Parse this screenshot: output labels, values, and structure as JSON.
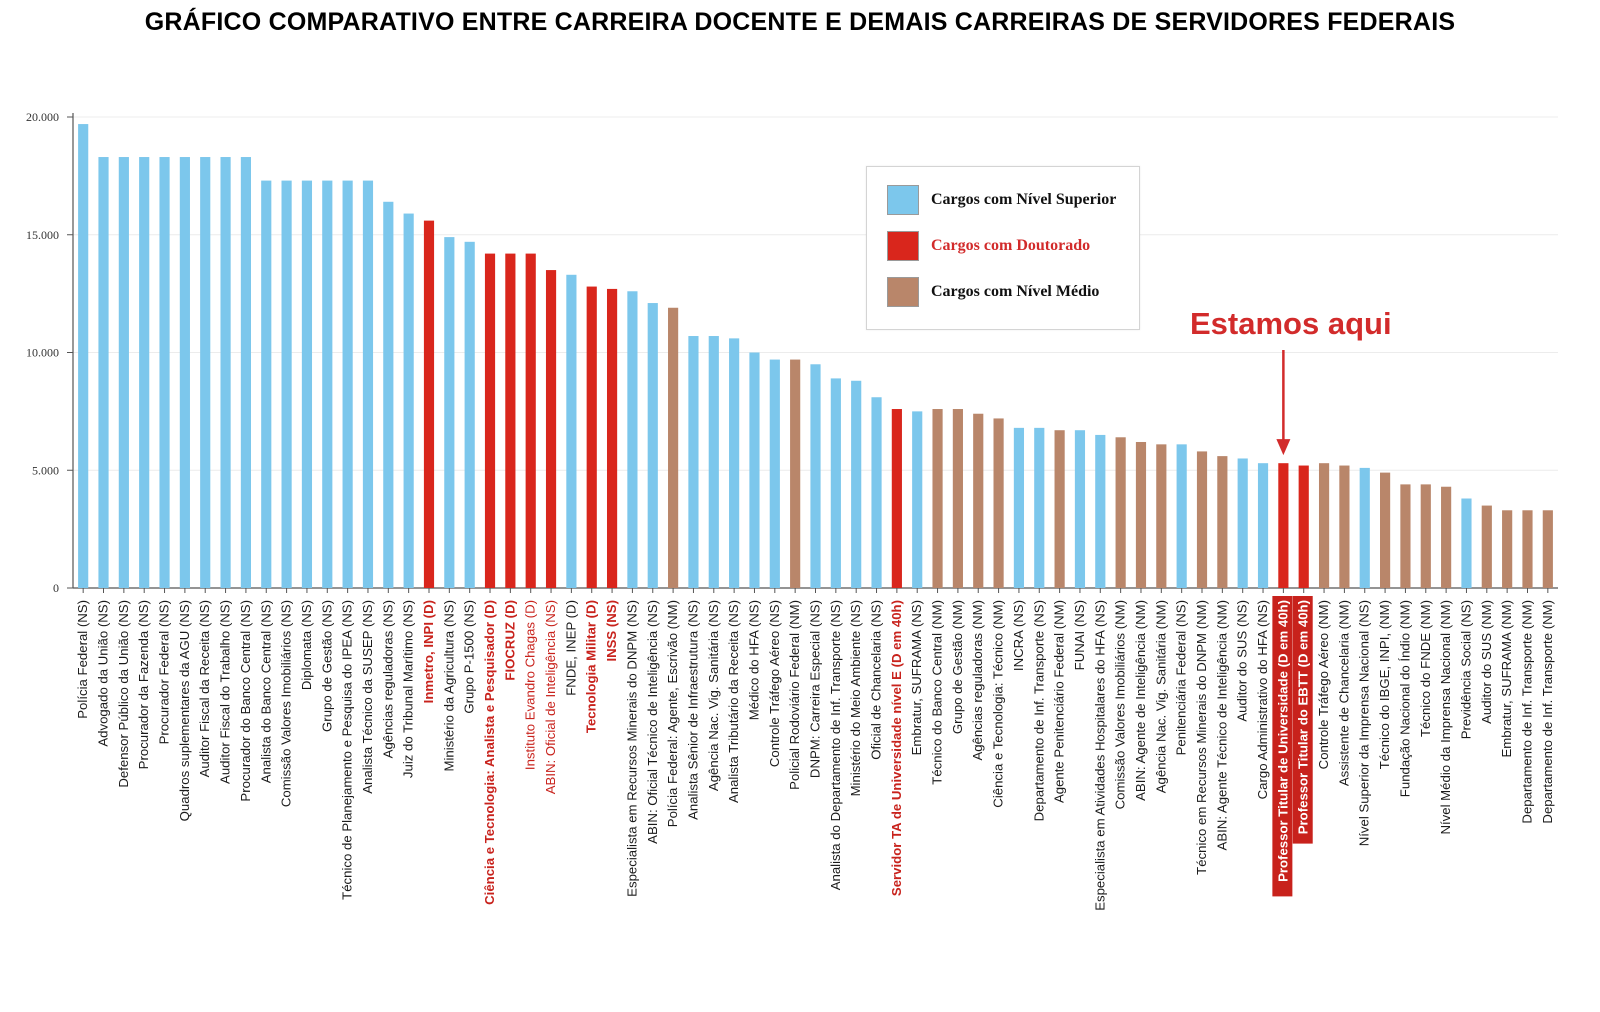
{
  "title": "GRÁFICO COMPARATIVO ENTRE CARREIRA DOCENTE E DEMAIS CARREIRAS DE SERVIDORES FEDERAIS",
  "annotation": "Estamos aqui",
  "colors": {
    "superior": "#7cc7ec",
    "doutorado": "#d9261c",
    "medio": "#b9866a",
    "red_text": "#c8221c",
    "highlight_bg": "#c8221c"
  },
  "legend": [
    {
      "label": "Cargos com Nível Superior",
      "key": "superior",
      "text_color": "#111111"
    },
    {
      "label": "Cargos com Doutorado",
      "key": "doutorado",
      "text_color": "#d22b2b"
    },
    {
      "label": "Cargos com Nível Médio",
      "key": "medio",
      "text_color": "#111111"
    }
  ],
  "chart_data": {
    "type": "bar",
    "title": "GRÁFICO COMPARATIVO ENTRE CARREIRA DOCENTE E DEMAIS CARREIRAS DE SERVIDORES FEDERAIS",
    "xlabel": "",
    "ylabel": "",
    "ylim": [
      0,
      20000
    ],
    "yticks": [
      0,
      5000,
      10000,
      15000,
      20000
    ],
    "ytick_labels": [
      "0",
      "5.000",
      "10.000",
      "15.000",
      "20.000"
    ],
    "grid": true,
    "legend_position": "top-center",
    "annotated_category": "Professor Titular de Universidade (D em 40h)",
    "categories": [
      "Polícia Federal (NS)",
      "Advogado da União (NS)",
      "Defensor Público da União (NS)",
      "Procurador da Fazenda (NS)",
      "Procurador Federal (NS)",
      "Quadros suplementares da AGU (NS)",
      "Auditor Fiscal da Receita (NS)",
      "Auditor Fiscal do Trabalho (NS)",
      "Procurador do Banco Central (NS)",
      "Analista do Banco Central (NS)",
      "Comissão Valores Imobiliários (NS)",
      "Diplomata (NS)",
      "Grupo de Gestão (NS)",
      "Técnico de Planejamento e Pesquisa do IPEA (NS)",
      "Analista Técnico da SUSEP (NS)",
      "Agências reguladoras (NS)",
      "Juiz do Tribunal Marítimo (NS)",
      "Inmetro, INPI (D)",
      "Ministério da Agricultura (NS)",
      "Grupo P-1500 (NS)",
      "Ciência e Tecnologia: Analista e Pesquisador (D)",
      "FIOCRUZ (D)",
      "Instituto Evandro Chagas (D)",
      "ABIN: Oficial de Inteligência (NS)",
      "FNDE, INEP (D)",
      "Tecnologia Militar (D)",
      "INSS (NS)",
      "Especialista em Recursos Minerais do DNPM (NS)",
      "ABIN: Oficial Técnico de Inteligência (NS)",
      "Polícia Federal: Agente, Escrivão (NM)",
      "Analista Sênior de Infraestrutura (NS)",
      "Agência Nac. Vig. Sanitária (NS)",
      "Analista Tributário da Receita (NS)",
      "Médico do HFA (NS)",
      "Controle Tráfego Aéreo (NS)",
      "Policial Rodoviário Federal (NM)",
      "DNPM: Carreira Especial (NS)",
      "Analista do Departamento de Inf. Transporte (NS)",
      "Ministério do Meio Ambiente (NS)",
      "Oficial de Chancelaria (NS)",
      "Servidor TA de Universidade nível E (D em 40h)",
      "Embratur, SUFRAMA (NS)",
      "Técnico do Banco Central (NM)",
      "Grupo de Gestão (NM)",
      "Agências reguladoras (NM)",
      "Ciência e Tecnologia: Técnico (NM)",
      "INCRA (NS)",
      "Departamento de Inf. Transporte (NS)",
      "Agente Penitenciário Federal (NM)",
      "FUNAI (NS)",
      "Especialista em Atividades Hospitalares do HFA (NS)",
      "Comissão Valores Imobiliários (NM)",
      "ABIN: Agente de Inteligência (NM)",
      "Agência Nac. Vig. Sanitária (NM)",
      "Penitenciária Federal (NS)",
      "Técnico em Recursos Minerais do DNPM (NM)",
      "ABIN: Agente Técnico de Inteligência (NM)",
      "Auditor do SUS (NS)",
      "Cargo Administrativo do HFA (NS)",
      "Professor Titular de Universidade (D em 40h)",
      "Professor Titular do EBTT (D em 40h)",
      "Controle Tráfego Aéreo (NM)",
      "Assistente de Chancelaria (NM)",
      "Nível Superior da Imprensa Nacional (NS)",
      "Técnico do IBGE, INPI, (NM)",
      "Fundação Nacional do Índio (NM)",
      "Técnico do FNDE (NM)",
      "Nível Médio da Imprensa Nacional (NM)",
      "Previdência Social (NS)",
      "Auditor do SUS (NM)",
      "Embratur, SUFRAMA (NM)",
      "Departamento de Inf. Transporte (NM)",
      "Departamento de Inf. Transporte (NM)"
    ],
    "values": [
      19700,
      18300,
      18300,
      18300,
      18300,
      18300,
      18300,
      18300,
      18300,
      17300,
      17300,
      17300,
      17300,
      17300,
      17300,
      16400,
      15900,
      15600,
      14900,
      14700,
      14200,
      14200,
      14200,
      13500,
      13300,
      12800,
      12700,
      12600,
      12100,
      11900,
      10700,
      10700,
      10600,
      10000,
      9700,
      9700,
      9500,
      8900,
      8800,
      8100,
      7600,
      7500,
      7600,
      7600,
      7400,
      7200,
      6800,
      6800,
      6700,
      6700,
      6500,
      6400,
      6200,
      6100,
      6100,
      5800,
      5600,
      5500,
      5300,
      5300,
      5200,
      5300,
      5200,
      5100,
      4900,
      4400,
      4400,
      4300,
      3800,
      3500,
      3300,
      3300,
      3300
    ],
    "groups": [
      "superior",
      "superior",
      "superior",
      "superior",
      "superior",
      "superior",
      "superior",
      "superior",
      "superior",
      "superior",
      "superior",
      "superior",
      "superior",
      "superior",
      "superior",
      "superior",
      "superior",
      "doutorado",
      "superior",
      "superior",
      "doutorado",
      "doutorado",
      "doutorado",
      "doutorado",
      "superior",
      "doutorado",
      "doutorado",
      "superior",
      "superior",
      "medio",
      "superior",
      "superior",
      "superior",
      "superior",
      "superior",
      "medio",
      "superior",
      "superior",
      "superior",
      "superior",
      "doutorado",
      "superior",
      "medio",
      "medio",
      "medio",
      "medio",
      "superior",
      "superior",
      "medio",
      "superior",
      "superior",
      "medio",
      "medio",
      "medio",
      "superior",
      "medio",
      "medio",
      "superior",
      "superior",
      "doutorado",
      "doutorado",
      "medio",
      "medio",
      "superior",
      "medio",
      "medio",
      "medio",
      "medio",
      "superior",
      "medio",
      "medio",
      "medio",
      "medio"
    ],
    "label_styles": [
      "normal",
      "normal",
      "normal",
      "normal",
      "normal",
      "normal",
      "normal",
      "normal",
      "normal",
      "normal",
      "normal",
      "normal",
      "normal",
      "normal",
      "normal",
      "normal",
      "normal",
      "red-bold",
      "normal",
      "normal",
      "red-bold",
      "red-bold",
      "red",
      "red",
      "normal",
      "red-bold",
      "red-bold",
      "normal",
      "normal",
      "normal",
      "normal",
      "normal",
      "normal",
      "normal",
      "normal",
      "normal",
      "normal",
      "normal",
      "normal",
      "normal",
      "red-bold",
      "normal",
      "normal",
      "normal",
      "normal",
      "normal",
      "normal",
      "normal",
      "normal",
      "normal",
      "normal",
      "normal",
      "normal",
      "normal",
      "normal",
      "normal",
      "normal",
      "normal",
      "normal",
      "highlight",
      "highlight",
      "normal",
      "normal",
      "normal",
      "normal",
      "normal",
      "normal",
      "normal",
      "normal",
      "normal",
      "normal",
      "normal",
      "normal"
    ]
  }
}
